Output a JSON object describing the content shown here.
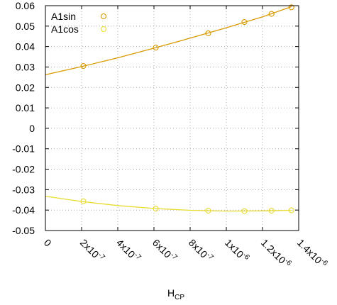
{
  "chart_data": {
    "type": "scatter",
    "title": "",
    "xlabel_main": "H",
    "xlabel_sub": "CP",
    "ylabel": "",
    "xlim": [
      0,
      1.4e-06
    ],
    "ylim": [
      -0.05,
      0.06
    ],
    "grid": true,
    "legend_position": "top-left",
    "x_ticks": [
      {
        "value": 0,
        "base": "0",
        "exp": ""
      },
      {
        "value": 2e-07,
        "base": "2x10",
        "exp": "-7"
      },
      {
        "value": 4e-07,
        "base": "4x10",
        "exp": "-7"
      },
      {
        "value": 6e-07,
        "base": "6x10",
        "exp": "-7"
      },
      {
        "value": 8e-07,
        "base": "8x10",
        "exp": "-7"
      },
      {
        "value": 1e-06,
        "base": "1x10",
        "exp": "-6"
      },
      {
        "value": 1.2e-06,
        "base": "1.2x10",
        "exp": "-6"
      },
      {
        "value": 1.4e-06,
        "base": "1.4x10",
        "exp": "-6"
      }
    ],
    "y_ticks": [
      {
        "value": 0.06,
        "label": "0.06"
      },
      {
        "value": 0.05,
        "label": "0.05"
      },
      {
        "value": 0.04,
        "label": "0.04"
      },
      {
        "value": 0.03,
        "label": "0.03"
      },
      {
        "value": 0.02,
        "label": "0.02"
      },
      {
        "value": 0.01,
        "label": "0.01"
      },
      {
        "value": 0,
        "label": "0"
      },
      {
        "value": -0.01,
        "label": "-0.01"
      },
      {
        "value": -0.02,
        "label": "-0.02"
      },
      {
        "value": -0.03,
        "label": "-0.03"
      },
      {
        "value": -0.04,
        "label": "-0.04"
      },
      {
        "value": -0.05,
        "label": "-0.05"
      }
    ],
    "series": [
      {
        "name": "A1sin",
        "color": "#d99a00",
        "points": [
          {
            "x": 2.1e-07,
            "y": 0.0305
          },
          {
            "x": 6.1e-07,
            "y": 0.0395
          },
          {
            "x": 9e-07,
            "y": 0.0465
          },
          {
            "x": 1.1e-06,
            "y": 0.052
          },
          {
            "x": 1.25e-06,
            "y": 0.056
          },
          {
            "x": 1.36e-06,
            "y": 0.0592
          }
        ],
        "fit": [
          {
            "x": 0,
            "y": 0.0262
          },
          {
            "x": 2e-07,
            "y": 0.0302
          },
          {
            "x": 4e-07,
            "y": 0.0345
          },
          {
            "x": 6e-07,
            "y": 0.0392
          },
          {
            "x": 8e-07,
            "y": 0.0441
          },
          {
            "x": 1e-06,
            "y": 0.0492
          },
          {
            "x": 1.2e-06,
            "y": 0.0545
          },
          {
            "x": 1.36e-06,
            "y": 0.0595
          }
        ]
      },
      {
        "name": "A1cos",
        "color": "#e8dc30",
        "points": [
          {
            "x": 2.1e-07,
            "y": -0.0357
          },
          {
            "x": 6.1e-07,
            "y": -0.0393
          },
          {
            "x": 9e-07,
            "y": -0.0403
          },
          {
            "x": 1.1e-06,
            "y": -0.0405
          },
          {
            "x": 1.25e-06,
            "y": -0.0403
          },
          {
            "x": 1.36e-06,
            "y": -0.0401
          }
        ],
        "fit": [
          {
            "x": 0,
            "y": -0.0332
          },
          {
            "x": 2e-07,
            "y": -0.0358
          },
          {
            "x": 4e-07,
            "y": -0.0378
          },
          {
            "x": 6e-07,
            "y": -0.0392
          },
          {
            "x": 8e-07,
            "y": -0.0401
          },
          {
            "x": 1e-06,
            "y": -0.0405
          },
          {
            "x": 1.2e-06,
            "y": -0.0404
          },
          {
            "x": 1.36e-06,
            "y": -0.0401
          }
        ]
      }
    ]
  }
}
